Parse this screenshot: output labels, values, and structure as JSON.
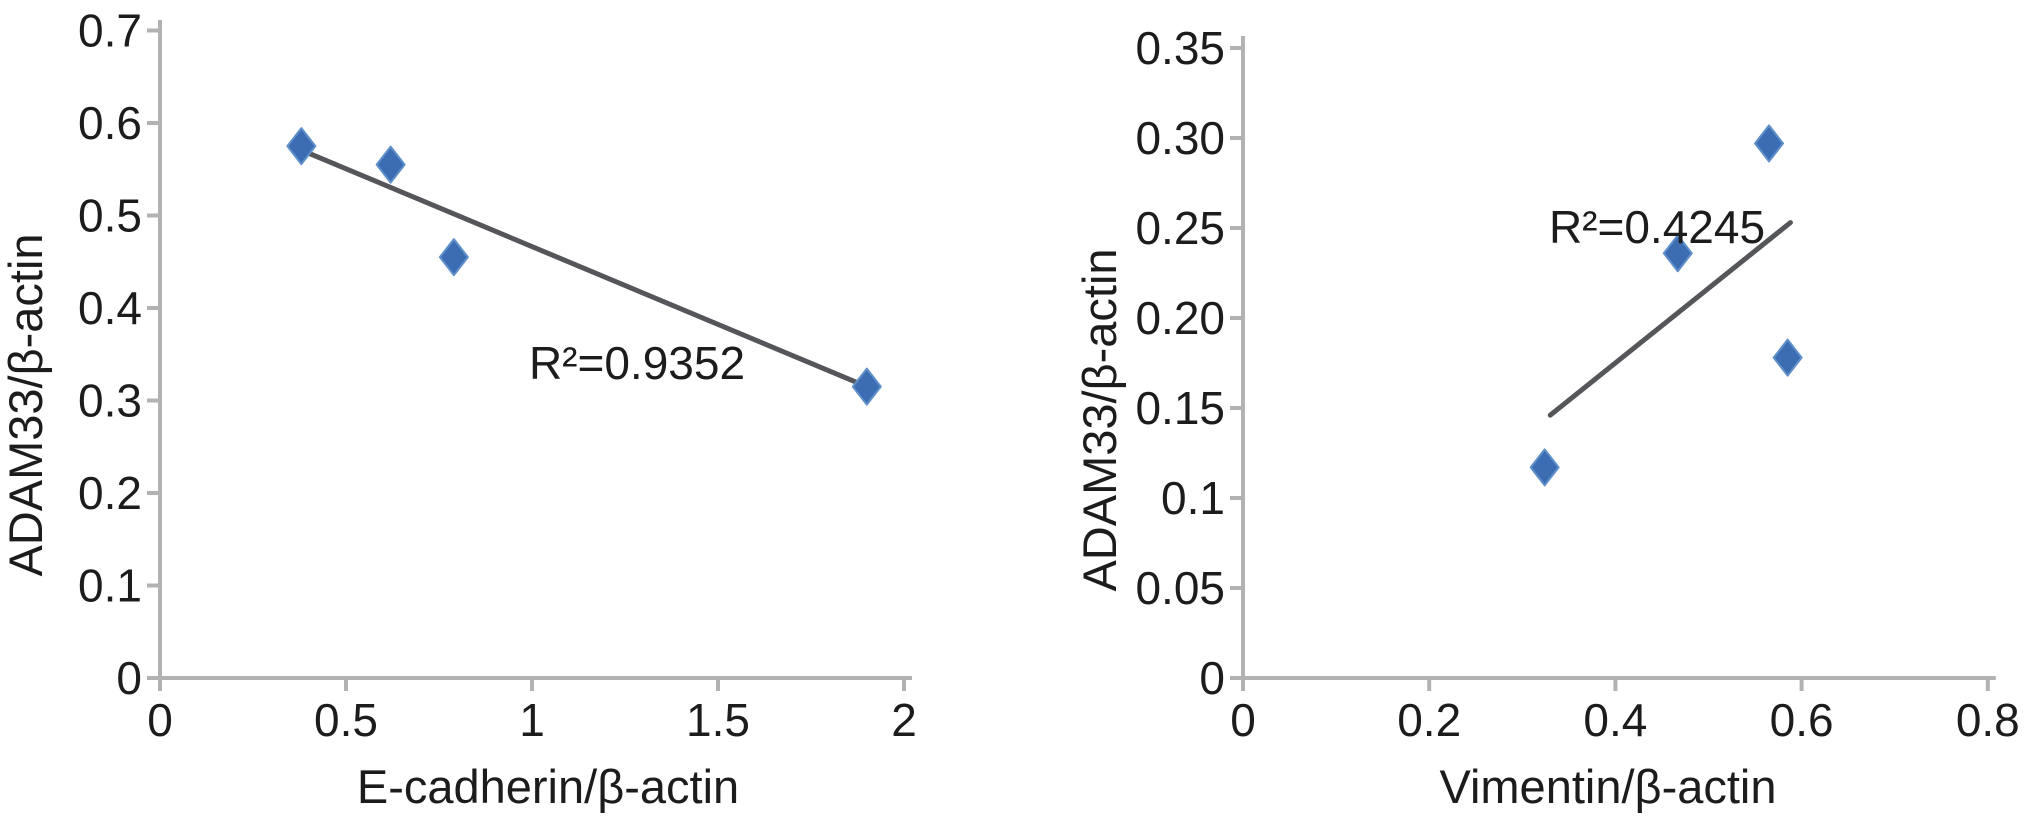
{
  "figure": {
    "background": "#ffffff",
    "description": "Two scatter plots with linear trendlines correlating ADAM33 protein levels with E-cadherin and Vimentin levels"
  },
  "chart_data": [
    {
      "type": "scatter",
      "title": "",
      "xlabel": "E-cadherin/β-actin",
      "ylabel": "ADAM33/β-actin",
      "xlim": [
        0,
        2
      ],
      "ylim": [
        0,
        0.7
      ],
      "grid": false,
      "legend": "none",
      "x_tick_values": [
        0,
        0.5,
        1,
        1.5,
        2
      ],
      "x_tick_labels": [
        "0",
        "0.5",
        "1",
        "1.5",
        "2"
      ],
      "y_tick_values": [
        0,
        0.1,
        0.2,
        0.3,
        0.4,
        0.5,
        0.6,
        0.7
      ],
      "y_tick_labels": [
        "0",
        "0.1",
        "0.2",
        "0.3",
        "0.4",
        "0.5",
        "0.6",
        "0.7"
      ],
      "points": [
        {
          "x": 0.38,
          "y": 0.575
        },
        {
          "x": 0.62,
          "y": 0.555
        },
        {
          "x": 0.79,
          "y": 0.455
        },
        {
          "x": 1.9,
          "y": 0.315
        }
      ],
      "trendline": {
        "x1": 0.39,
        "y1": 0.569,
        "x2": 1.9,
        "y2": 0.315
      },
      "annotation": {
        "text": "R²=0.9352"
      },
      "marker_color": "#3c6db2",
      "marker_edge_color": "#6090ca",
      "trendline_color": "#55565a",
      "axis_color": "#b2b2b2",
      "text_color": "#1c1c1c"
    },
    {
      "type": "scatter",
      "title": "",
      "xlabel": "Vimentin/β-actin",
      "ylabel": "ADAM33/β-actin",
      "xlim": [
        0,
        0.8
      ],
      "ylim": [
        0,
        0.35
      ],
      "grid": false,
      "legend": "none",
      "x_tick_values": [
        0,
        0.2,
        0.4,
        0.6,
        0.8
      ],
      "x_tick_labels": [
        "0",
        "0.2",
        "0.4",
        "0.6",
        "0.8"
      ],
      "y_tick_values": [
        0,
        0.05,
        0.1,
        0.15,
        0.2,
        0.25,
        0.3,
        0.35
      ],
      "y_tick_labels": [
        "0",
        "0.05",
        "0.1",
        "0.15",
        "0.20",
        "0.25",
        "0.30",
        "0.35"
      ],
      "points": [
        {
          "x": 0.324,
          "y": 0.117
        },
        {
          "x": 0.467,
          "y": 0.236
        },
        {
          "x": 0.565,
          "y": 0.297
        },
        {
          "x": 0.585,
          "y": 0.178
        }
      ],
      "trendline": {
        "x1": 0.33,
        "y1": 0.146,
        "x2": 0.588,
        "y2": 0.253
      },
      "annotation": {
        "text": "R²=0.4245"
      },
      "marker_color": "#3c6db2",
      "marker_edge_color": "#6090ca",
      "trendline_color": "#55565a",
      "axis_color": "#b2b2b2",
      "text_color": "#1c1c1c"
    }
  ]
}
